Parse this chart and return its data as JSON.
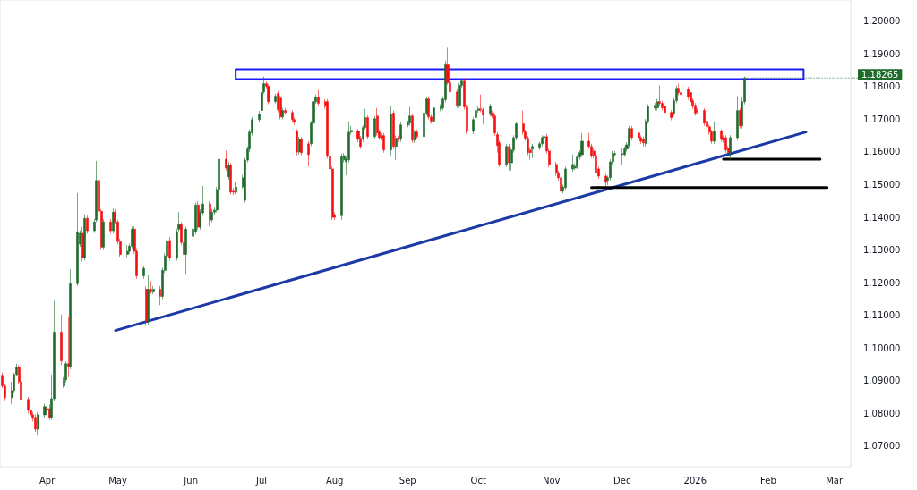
{
  "chart_data": {
    "type": "candlestick",
    "marker": "none",
    "line_style": "solid",
    "xlim": [
      "2025-03-12",
      "2026-03-08"
    ],
    "xticks": [
      {
        "value": "2025-04-01",
        "label": "Apr"
      },
      {
        "value": "2025-05-01",
        "label": "May"
      },
      {
        "value": "2025-06-01",
        "label": "Jun"
      },
      {
        "value": "2025-07-01",
        "label": "Jul"
      },
      {
        "value": "2025-08-01",
        "label": "Aug"
      },
      {
        "value": "2025-09-01",
        "label": "Sep"
      },
      {
        "value": "2025-10-01",
        "label": "Oct"
      },
      {
        "value": "2025-11-01",
        "label": "Nov"
      },
      {
        "value": "2025-12-01",
        "label": "Dec"
      },
      {
        "value": "2026-01-01",
        "label": "2026"
      },
      {
        "value": "2026-02-01",
        "label": "Feb"
      },
      {
        "value": "2026-03-01",
        "label": "Mar"
      }
    ],
    "ylim": [
      1.0637,
      1.2065
    ],
    "yticks": [
      {
        "value": 1.07,
        "label": "1.07000"
      },
      {
        "value": 1.08,
        "label": "1.08000"
      },
      {
        "value": 1.09,
        "label": "1.09000"
      },
      {
        "value": 1.1,
        "label": "1.10000"
      },
      {
        "value": 1.11,
        "label": "1.11000"
      },
      {
        "value": 1.12,
        "label": "1.12000"
      },
      {
        "value": 1.13,
        "label": "1.13000"
      },
      {
        "value": 1.14,
        "label": "1.14000"
      },
      {
        "value": 1.15,
        "label": "1.15000"
      },
      {
        "value": 1.16,
        "label": "1.16000"
      },
      {
        "value": 1.17,
        "label": "1.17000"
      },
      {
        "value": 1.18,
        "label": "1.18000"
      },
      {
        "value": 1.19,
        "label": "1.19000"
      },
      {
        "value": 1.2,
        "label": "1.20000"
      }
    ],
    "annotations": [
      {
        "text": "1.18265",
        "x": "2026-01-22",
        "y": 1.18265
      }
    ],
    "series": [
      {
        "x": [
          "2025-03-13",
          "2025-03-14",
          "2025-03-17",
          "2025-03-18",
          "2025-03-19",
          "2025-03-20",
          "2025-03-21",
          "2025-03-24",
          "2025-03-25",
          "2025-03-26",
          "2025-03-27",
          "2025-03-28",
          "2025-03-31",
          "2025-04-01",
          "2025-04-02",
          "2025-04-03",
          "2025-04-04",
          "2025-04-07",
          "2025-04-08",
          "2025-04-09",
          "2025-04-10",
          "2025-04-11",
          "2025-04-14",
          "2025-04-15",
          "2025-04-16",
          "2025-04-17",
          "2025-04-18",
          "2025-04-21",
          "2025-04-22",
          "2025-04-23",
          "2025-04-24",
          "2025-04-25",
          "2025-04-28",
          "2025-04-29",
          "2025-04-30",
          "2025-05-01",
          "2025-05-02",
          "2025-05-05",
          "2025-05-06",
          "2025-05-07",
          "2025-05-08",
          "2025-05-09",
          "2025-05-12",
          "2025-05-13",
          "2025-05-14",
          "2025-05-15",
          "2025-05-16",
          "2025-05-19",
          "2025-05-20",
          "2025-05-21",
          "2025-05-22",
          "2025-05-23",
          "2025-05-26",
          "2025-05-27",
          "2025-05-28",
          "2025-05-29",
          "2025-05-30",
          "2025-06-02",
          "2025-06-03",
          "2025-06-04",
          "2025-06-05",
          "2025-06-06",
          "2025-06-09",
          "2025-06-10",
          "2025-06-11",
          "2025-06-12",
          "2025-06-13",
          "2025-06-16",
          "2025-06-17",
          "2025-06-18",
          "2025-06-19",
          "2025-06-20",
          "2025-06-23",
          "2025-06-24",
          "2025-06-25",
          "2025-06-26",
          "2025-06-27",
          "2025-06-30",
          "2025-07-01",
          "2025-07-02",
          "2025-07-03",
          "2025-07-04",
          "2025-07-07",
          "2025-07-08",
          "2025-07-09",
          "2025-07-10",
          "2025-07-11",
          "2025-07-14",
          "2025-07-15",
          "2025-07-16",
          "2025-07-17",
          "2025-07-18",
          "2025-07-21",
          "2025-07-22",
          "2025-07-23",
          "2025-07-24",
          "2025-07-25",
          "2025-07-28",
          "2025-07-29",
          "2025-07-30",
          "2025-07-31",
          "2025-08-01",
          "2025-08-04",
          "2025-08-05",
          "2025-08-06",
          "2025-08-07",
          "2025-08-08",
          "2025-08-11",
          "2025-08-12",
          "2025-08-13",
          "2025-08-14",
          "2025-08-15",
          "2025-08-18",
          "2025-08-19",
          "2025-08-20",
          "2025-08-21",
          "2025-08-22",
          "2025-08-25",
          "2025-08-26",
          "2025-08-27",
          "2025-08-28",
          "2025-08-29",
          "2025-09-01",
          "2025-09-02",
          "2025-09-03",
          "2025-09-04",
          "2025-09-05",
          "2025-09-08",
          "2025-09-09",
          "2025-09-10",
          "2025-09-11",
          "2025-09-12",
          "2025-09-15",
          "2025-09-16",
          "2025-09-17",
          "2025-09-18",
          "2025-09-19",
          "2025-09-22",
          "2025-09-23",
          "2025-09-24",
          "2025-09-25",
          "2025-09-26",
          "2025-09-29",
          "2025-09-30",
          "2025-10-01",
          "2025-10-02",
          "2025-10-03",
          "2025-10-06",
          "2025-10-07",
          "2025-10-08",
          "2025-10-09",
          "2025-10-10",
          "2025-10-13",
          "2025-10-14",
          "2025-10-15",
          "2025-10-16",
          "2025-10-17",
          "2025-10-20",
          "2025-10-21",
          "2025-10-22",
          "2025-10-23",
          "2025-10-24",
          "2025-10-27",
          "2025-10-28",
          "2025-10-29",
          "2025-10-30",
          "2025-10-31",
          "2025-11-03",
          "2025-11-04",
          "2025-11-05",
          "2025-11-06",
          "2025-11-07",
          "2025-11-10",
          "2025-11-11",
          "2025-11-12",
          "2025-11-13",
          "2025-11-14",
          "2025-11-17",
          "2025-11-18",
          "2025-11-19",
          "2025-11-20",
          "2025-11-21",
          "2025-11-24",
          "2025-11-25",
          "2025-11-26",
          "2025-11-27",
          "2025-11-28",
          "2025-12-01",
          "2025-12-02",
          "2025-12-03",
          "2025-12-04",
          "2025-12-05",
          "2025-12-08",
          "2025-12-09",
          "2025-12-10",
          "2025-12-11",
          "2025-12-12",
          "2025-12-15",
          "2025-12-16",
          "2025-12-17",
          "2025-12-18",
          "2025-12-19",
          "2025-12-22",
          "2025-12-23",
          "2025-12-24",
          "2025-12-25",
          "2025-12-26",
          "2025-12-29",
          "2025-12-30",
          "2025-12-31",
          "2026-01-01",
          "2026-01-02",
          "2026-01-05",
          "2026-01-06",
          "2026-01-07",
          "2026-01-08",
          "2026-01-09",
          "2026-01-12",
          "2026-01-13",
          "2026-01-14",
          "2026-01-15",
          "2026-01-16",
          "2026-01-19",
          "2026-01-20",
          "2026-01-21",
          "2026-01-22"
        ],
        "ohlc": [
          [
            1.0917,
            1.0925,
            1.0878,
            1.0884
          ],
          [
            1.0884,
            1.089,
            1.084,
            1.0848
          ],
          [
            1.0848,
            1.0897,
            1.0829,
            1.087
          ],
          [
            1.087,
            1.0925,
            1.0862,
            1.0919
          ],
          [
            1.0919,
            1.0952,
            1.0914,
            1.0941
          ],
          [
            1.0941,
            1.0948,
            1.089,
            1.0897
          ],
          [
            1.0897,
            1.0905,
            1.0835,
            1.0843
          ],
          [
            1.0843,
            1.085,
            1.08,
            1.081
          ],
          [
            1.081,
            1.0818,
            1.0788,
            1.0796
          ],
          [
            1.0796,
            1.0805,
            1.0776,
            1.0785
          ],
          [
            1.0788,
            1.0798,
            1.0744,
            1.0752
          ],
          [
            1.0752,
            1.0805,
            1.0733,
            1.0796
          ],
          [
            1.0796,
            1.083,
            1.0788,
            1.0821
          ],
          [
            1.0815,
            1.0825,
            1.08,
            1.081
          ],
          [
            1.0815,
            1.0828,
            1.078,
            1.0788
          ],
          [
            1.0788,
            1.0919,
            1.078,
            1.0845
          ],
          [
            1.0845,
            1.1145,
            1.0838,
            1.1049
          ],
          [
            1.1049,
            1.1103,
            1.0948,
            1.0961
          ],
          [
            1.0884,
            1.0911,
            1.0878,
            1.0903
          ],
          [
            1.0903,
            1.096,
            1.0895,
            1.0952
          ],
          [
            1.0952,
            1.1095,
            1.0911,
            1.0944
          ],
          [
            1.0944,
            1.1241,
            1.0935,
            1.1197
          ],
          [
            1.1197,
            1.1474,
            1.119,
            1.1356
          ],
          [
            1.1318,
            1.136,
            1.131,
            1.1351
          ],
          [
            1.1351,
            1.137,
            1.1265,
            1.1276
          ],
          [
            1.1276,
            1.141,
            1.1268,
            1.1397
          ],
          [
            1.1397,
            1.1405,
            1.135,
            1.1359
          ],
          [
            1.1359,
            1.1395,
            1.1352,
            1.1386
          ],
          [
            1.1392,
            1.1573,
            1.1385,
            1.1513
          ],
          [
            1.1513,
            1.1543,
            1.141,
            1.1419
          ],
          [
            1.1419,
            1.1425,
            1.13,
            1.1309
          ],
          [
            1.1309,
            1.1395,
            1.13,
            1.1386
          ],
          [
            1.1386,
            1.1395,
            1.135,
            1.1359
          ],
          [
            1.1359,
            1.1428,
            1.135,
            1.1416
          ],
          [
            1.1416,
            1.1425,
            1.1378,
            1.1386
          ],
          [
            1.1386,
            1.1393,
            1.1318,
            1.1326
          ],
          [
            1.1326,
            1.1335,
            1.128,
            1.1287
          ],
          [
            1.1287,
            1.1315,
            1.1278,
            1.1296
          ],
          [
            1.1296,
            1.132,
            1.1288,
            1.1312
          ],
          [
            1.1312,
            1.1372,
            1.1305,
            1.1364
          ],
          [
            1.1364,
            1.1372,
            1.1288,
            1.1296
          ],
          [
            1.1296,
            1.1305,
            1.1212,
            1.1221
          ],
          [
            1.1221,
            1.1252,
            1.1212,
            1.1244
          ],
          [
            1.118,
            1.119,
            1.1068,
            1.1081
          ],
          [
            1.1081,
            1.1225,
            1.1072,
            1.118
          ],
          [
            1.118,
            1.1205,
            1.1165,
            1.1172
          ],
          [
            1.1172,
            1.119,
            1.1165,
            1.118
          ],
          [
            1.118,
            1.119,
            1.1131,
            1.1158
          ],
          [
            1.1158,
            1.1246,
            1.115,
            1.1238
          ],
          [
            1.1238,
            1.129,
            1.123,
            1.1282
          ],
          [
            1.1282,
            1.1337,
            1.1275,
            1.1329
          ],
          [
            1.1329,
            1.134,
            1.1268,
            1.1276
          ],
          [
            1.1276,
            1.1365,
            1.1268,
            1.1356
          ],
          [
            1.1364,
            1.1416,
            1.1357,
            1.1378
          ],
          [
            1.1378,
            1.1386,
            1.1315,
            1.1323
          ],
          [
            1.1323,
            1.133,
            1.128,
            1.1287
          ],
          [
            1.1287,
            1.1372,
            1.1227,
            1.1364
          ],
          [
            1.1342,
            1.1372,
            1.1335,
            1.1364
          ],
          [
            1.1356,
            1.1445,
            1.1348,
            1.1438
          ],
          [
            1.1438,
            1.145,
            1.1362,
            1.137
          ],
          [
            1.137,
            1.1425,
            1.1362,
            1.1416
          ],
          [
            1.1414,
            1.1496,
            1.1405,
            1.1441
          ],
          [
            1.1441,
            1.145,
            1.1372,
            1.1392
          ],
          [
            1.1392,
            1.1425,
            1.1385,
            1.1416
          ],
          [
            1.1416,
            1.143,
            1.1408,
            1.1422
          ],
          [
            1.1422,
            1.1493,
            1.1415,
            1.1485
          ],
          [
            1.1485,
            1.1631,
            1.1478,
            1.1578
          ],
          [
            1.1578,
            1.1605,
            1.1543,
            1.1551
          ],
          [
            1.1524,
            1.157,
            1.1515,
            1.1559
          ],
          [
            1.1559,
            1.1566,
            1.147,
            1.1477
          ],
          [
            1.148,
            1.149,
            1.1468,
            1.1477
          ],
          [
            1.1477,
            1.151,
            1.147,
            1.1493
          ],
          [
            1.1493,
            1.153,
            1.1487,
            1.1521
          ],
          [
            1.1452,
            1.1582,
            1.1445,
            1.1575
          ],
          [
            1.1575,
            1.1617,
            1.1568,
            1.1609
          ],
          [
            1.1609,
            1.167,
            1.16,
            1.1661
          ],
          [
            1.1658,
            1.1707,
            1.165,
            1.1699
          ],
          [
            1.1699,
            1.1725,
            1.169,
            1.1716
          ],
          [
            1.1727,
            1.179,
            1.172,
            1.1782
          ],
          [
            1.1784,
            1.1831,
            1.1778,
            1.1809
          ],
          [
            1.1809,
            1.1815,
            1.1795,
            1.1801
          ],
          [
            1.1801,
            1.1808,
            1.1746,
            1.1754
          ],
          [
            1.1754,
            1.1778,
            1.1748,
            1.1771
          ],
          [
            1.1779,
            1.1787,
            1.1721,
            1.1729
          ],
          [
            1.1765,
            1.1773,
            1.17,
            1.1707
          ],
          [
            1.1707,
            1.1735,
            1.17,
            1.1727
          ],
          [
            1.1727,
            1.1735,
            1.1714,
            1.1721
          ],
          [
            1.1721,
            1.1728,
            1.169,
            1.1699
          ],
          [
            1.1699,
            1.1705,
            1.1683,
            1.1691
          ],
          [
            1.1663,
            1.167,
            1.159,
            1.16
          ],
          [
            1.16,
            1.1647,
            1.1592,
            1.1639
          ],
          [
            1.1639,
            1.1646,
            1.159,
            1.1598
          ],
          [
            1.1625,
            1.1633,
            1.1556,
            1.1592
          ],
          [
            1.1625,
            1.1695,
            1.1618,
            1.1688
          ],
          [
            1.1688,
            1.1762,
            1.168,
            1.1754
          ],
          [
            1.1754,
            1.1776,
            1.1748,
            1.1768
          ],
          [
            1.1768,
            1.179,
            1.1742,
            1.1749
          ],
          [
            1.1754,
            1.1762,
            1.1733,
            1.174
          ],
          [
            1.1754,
            1.1762,
            1.158,
            1.1587
          ],
          [
            1.1587,
            1.1595,
            1.154,
            1.1548
          ],
          [
            1.1548,
            1.1555,
            1.1392,
            1.14
          ],
          [
            1.1408,
            1.1415,
            1.1392,
            1.14
          ],
          [
            1.1405,
            1.1595,
            1.1392,
            1.1587
          ],
          [
            1.1576,
            1.1597,
            1.1568,
            1.1589
          ],
          [
            1.157,
            1.1586,
            1.1529,
            1.1578
          ],
          [
            1.1576,
            1.1694,
            1.1568,
            1.1661
          ],
          [
            1.1661,
            1.168,
            1.1653,
            1.1666
          ],
          [
            1.1663,
            1.167,
            1.163,
            1.1639
          ],
          [
            1.1642,
            1.1649,
            1.1609,
            1.1617
          ],
          [
            1.1639,
            1.1682,
            1.1631,
            1.1675
          ],
          [
            1.1675,
            1.1732,
            1.1668,
            1.1705
          ],
          [
            1.1705,
            1.1712,
            1.164,
            1.1647
          ],
          [
            1.1647,
            1.171,
            1.164,
            1.1702
          ],
          [
            1.171,
            1.1735,
            1.165,
            1.1658
          ],
          [
            1.1661,
            1.1668,
            1.1637,
            1.1644
          ],
          [
            1.165,
            1.1658,
            1.1636,
            1.1644
          ],
          [
            1.165,
            1.1658,
            1.1598,
            1.1606
          ],
          [
            1.1606,
            1.174,
            1.1589,
            1.1716
          ],
          [
            1.1719,
            1.1727,
            1.1609,
            1.1617
          ],
          [
            1.1617,
            1.165,
            1.1576,
            1.1642
          ],
          [
            1.1642,
            1.165,
            1.1631,
            1.1639
          ],
          [
            1.1639,
            1.1691,
            1.1631,
            1.1683
          ],
          [
            1.1683,
            1.1696,
            1.1676,
            1.1688
          ],
          [
            1.1688,
            1.1738,
            1.168,
            1.171
          ],
          [
            1.171,
            1.1718,
            1.1628,
            1.1636
          ],
          [
            1.1636,
            1.1668,
            1.1628,
            1.1661
          ],
          [
            1.1661,
            1.1668,
            1.164,
            1.1647
          ],
          [
            1.1647,
            1.1727,
            1.164,
            1.1719
          ],
          [
            1.1719,
            1.177,
            1.1712,
            1.1762
          ],
          [
            1.1762,
            1.177,
            1.17,
            1.1707
          ],
          [
            1.1707,
            1.1714,
            1.1686,
            1.1694
          ],
          [
            1.1694,
            1.1742,
            1.1661,
            1.1735
          ],
          [
            1.1732,
            1.1746,
            1.1725,
            1.1738
          ],
          [
            1.1735,
            1.177,
            1.1728,
            1.1762
          ],
          [
            1.176,
            1.188,
            1.1752,
            1.1867
          ],
          [
            1.1867,
            1.1919,
            1.1805,
            1.1812
          ],
          [
            1.1812,
            1.1819,
            1.1776,
            1.1784
          ],
          [
            1.1784,
            1.1791,
            1.1735,
            1.1743
          ],
          [
            1.1743,
            1.1811,
            1.1735,
            1.1804
          ],
          [
            1.1804,
            1.1824,
            1.1797,
            1.1817
          ],
          [
            1.1817,
            1.1824,
            1.173,
            1.1738
          ],
          [
            1.1738,
            1.1745,
            1.1655,
            1.1663
          ],
          [
            1.1663,
            1.1706,
            1.1655,
            1.1699
          ],
          [
            1.1705,
            1.1735,
            1.1698,
            1.1727
          ],
          [
            1.1727,
            1.174,
            1.172,
            1.1732
          ],
          [
            1.1732,
            1.1776,
            1.1722,
            1.1729
          ],
          [
            1.1729,
            1.1736,
            1.1685,
            1.1713
          ],
          [
            1.1716,
            1.1748,
            1.1709,
            1.174
          ],
          [
            1.1719,
            1.1726,
            1.1703,
            1.171
          ],
          [
            1.171,
            1.1717,
            1.165,
            1.1658
          ],
          [
            1.1653,
            1.166,
            1.1598,
            1.162
          ],
          [
            1.1628,
            1.1635,
            1.1554,
            1.1562
          ],
          [
            1.1562,
            1.1625,
            1.1554,
            1.1617
          ],
          [
            1.1617,
            1.1625,
            1.1543,
            1.1567
          ],
          [
            1.1567,
            1.1613,
            1.1543,
            1.1606
          ],
          [
            1.1606,
            1.1651,
            1.1598,
            1.1644
          ],
          [
            1.1644,
            1.1693,
            1.1636,
            1.1686
          ],
          [
            1.1686,
            1.1727,
            1.1653,
            1.1661
          ],
          [
            1.1661,
            1.1668,
            1.1634,
            1.1642
          ],
          [
            1.1642,
            1.1649,
            1.159,
            1.1598
          ],
          [
            1.1606,
            1.1614,
            1.1576,
            1.1598
          ],
          [
            1.1609,
            1.1625,
            1.1581,
            1.1617
          ],
          [
            1.1614,
            1.1632,
            1.1606,
            1.1625
          ],
          [
            1.1625,
            1.1651,
            1.1617,
            1.1644
          ],
          [
            1.1644,
            1.1672,
            1.1637,
            1.1647
          ],
          [
            1.1647,
            1.1655,
            1.1595,
            1.1603
          ],
          [
            1.1603,
            1.161,
            1.1554,
            1.1562
          ],
          [
            1.1562,
            1.157,
            1.1527,
            1.1535
          ],
          [
            1.1535,
            1.1542,
            1.1513,
            1.1521
          ],
          [
            1.1521,
            1.1528,
            1.1471,
            1.148
          ],
          [
            1.148,
            1.15,
            1.1473,
            1.1493
          ],
          [
            1.1491,
            1.1555,
            1.1483,
            1.1548
          ],
          [
            1.1548,
            1.1592,
            1.154,
            1.1562
          ],
          [
            1.1551,
            1.1565,
            1.1545,
            1.1556
          ],
          [
            1.1556,
            1.1591,
            1.1548,
            1.1584
          ],
          [
            1.1584,
            1.1605,
            1.1576,
            1.1598
          ],
          [
            1.1592,
            1.1658,
            1.1585,
            1.1633
          ],
          [
            1.1633,
            1.1658,
            1.161,
            1.1617
          ],
          [
            1.1617,
            1.1625,
            1.1581,
            1.1589
          ],
          [
            1.1603,
            1.161,
            1.1581,
            1.1589
          ],
          [
            1.1589,
            1.1597,
            1.1527,
            1.1535
          ],
          [
            1.1548,
            1.1555,
            1.1518,
            1.1526
          ],
          [
            1.1526,
            1.1533,
            1.1496,
            1.1507
          ],
          [
            1.1513,
            1.1528,
            1.1499,
            1.1521
          ],
          [
            1.1521,
            1.1578,
            1.1513,
            1.157
          ],
          [
            1.157,
            1.1603,
            1.1562,
            1.1595
          ],
          [
            1.1592,
            1.1603,
            1.1585,
            1.1595
          ],
          [
            1.1592,
            1.1611,
            1.1562,
            1.1595
          ],
          [
            1.1592,
            1.1617,
            1.1585,
            1.1609
          ],
          [
            1.1609,
            1.163,
            1.1601,
            1.1622
          ],
          [
            1.1622,
            1.168,
            1.1615,
            1.1672
          ],
          [
            1.1672,
            1.168,
            1.1636,
            1.1644
          ],
          [
            1.1658,
            1.1666,
            1.1636,
            1.1644
          ],
          [
            1.1644,
            1.1651,
            1.1625,
            1.1633
          ],
          [
            1.1639,
            1.1647,
            1.1617,
            1.1628
          ],
          [
            1.1625,
            1.1701,
            1.1617,
            1.1694
          ],
          [
            1.1694,
            1.1746,
            1.1686,
            1.1738
          ],
          [
            1.1735,
            1.175,
            1.1727,
            1.1743
          ],
          [
            1.1735,
            1.1762,
            1.1727,
            1.1754
          ],
          [
            1.1754,
            1.1804,
            1.1741,
            1.1749
          ],
          [
            1.1749,
            1.1756,
            1.1727,
            1.1735
          ],
          [
            1.174,
            1.1747,
            1.1713,
            1.1721
          ],
          [
            1.1721,
            1.1728,
            1.1697,
            1.1705
          ],
          [
            1.1719,
            1.1765,
            1.1711,
            1.1757
          ],
          [
            1.1757,
            1.1803,
            1.1749,
            1.1795
          ],
          [
            1.1795,
            1.1809,
            1.1774,
            1.1782
          ],
          [
            1.1782,
            1.1789,
            1.1768,
            1.1776
          ],
          [
            1.1793,
            1.18,
            1.176,
            1.1768
          ],
          [
            1.1782,
            1.1789,
            1.1746,
            1.1754
          ],
          [
            1.1757,
            1.1764,
            1.1732,
            1.174
          ],
          [
            1.1743,
            1.175,
            1.1711,
            1.1719
          ],
          [
            1.1727,
            1.1734,
            1.1716,
            1.1724
          ],
          [
            1.1727,
            1.1734,
            1.168,
            1.1688
          ],
          [
            1.1694,
            1.1701,
            1.1669,
            1.1677
          ],
          [
            1.1677,
            1.1684,
            1.1653,
            1.1661
          ],
          [
            1.1661,
            1.1668,
            1.1625,
            1.1633
          ],
          [
            1.1633,
            1.1694,
            1.1625,
            1.1663
          ],
          [
            1.1663,
            1.167,
            1.1631,
            1.1639
          ],
          [
            1.1644,
            1.1651,
            1.1628,
            1.1636
          ],
          [
            1.1644,
            1.1651,
            1.1598,
            1.1606
          ],
          [
            1.1611,
            1.1618,
            1.1592,
            1.1598
          ],
          [
            1.1598,
            1.1651,
            1.1578,
            1.1644
          ],
          [
            1.1644,
            1.1771,
            1.1636,
            1.1727
          ],
          [
            1.1727,
            1.1734,
            1.1672,
            1.168
          ],
          [
            1.168,
            1.1768,
            1.1672,
            1.1754
          ],
          [
            1.1754,
            1.1831,
            1.1746,
            1.18265
          ]
        ]
      },
      {
        "type": "line",
        "color": "#1c3aa6",
        "x": [
          "2025-04-30",
          "2026-02-17"
        ],
        "values": [
          1.1054,
          1.1661
        ]
      },
      {
        "type": "line",
        "color": "#1a1aff",
        "x": [
          "2025-06-20",
          "2026-02-16",
          "2026-02-16"
        ],
        "values": [
          1.1853,
          1.1853,
          1.1823
        ]
      },
      {
        "type": "line",
        "color": "#1a1aff",
        "x": [
          "2025-06-20",
          "2025-06-20",
          "2026-02-16"
        ],
        "values": [
          1.1853,
          1.1823,
          1.1823
        ]
      },
      {
        "type": "line",
        "color": "#000000",
        "x": [
          "2026-01-13",
          "2026-02-23"
        ],
        "values": [
          1.1578,
          1.1578
        ]
      },
      {
        "type": "line",
        "color": "#000000",
        "x": [
          "2025-11-18",
          "2026-02-26"
        ],
        "values": [
          1.1491,
          1.1491
        ]
      }
    ]
  }
}
